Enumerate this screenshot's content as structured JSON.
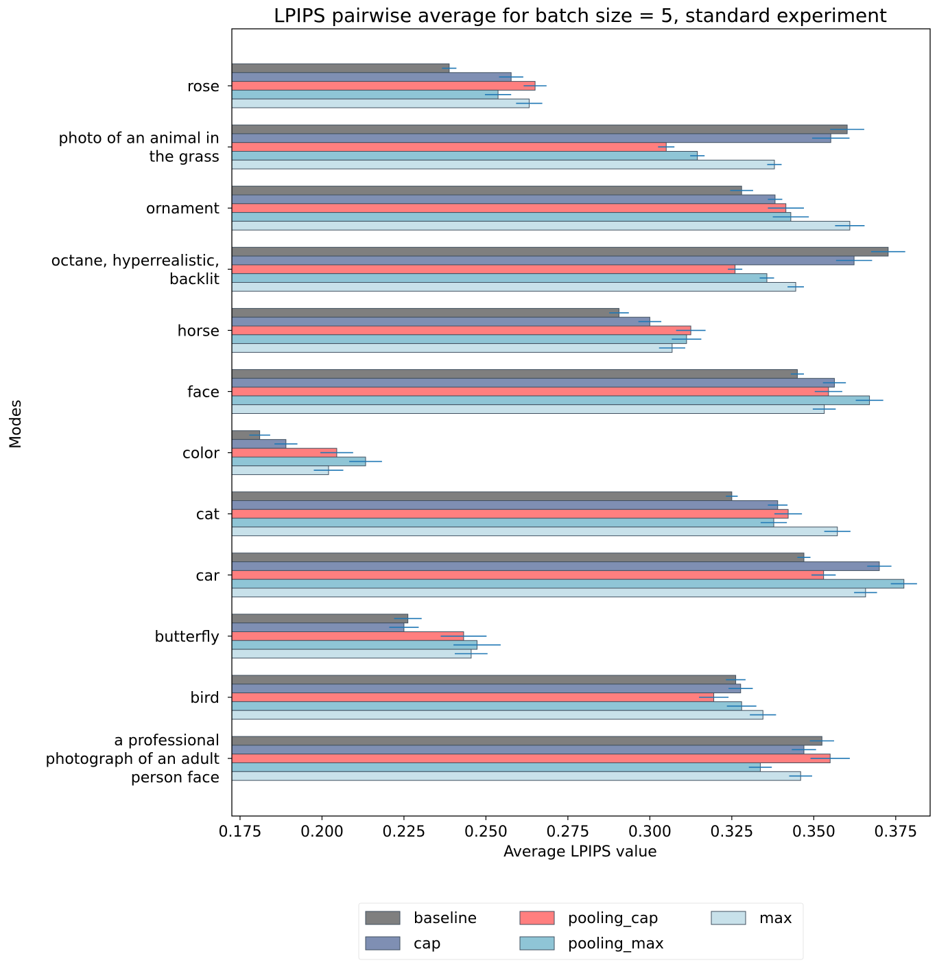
{
  "chart_data": {
    "type": "bar",
    "orientation": "horizontal",
    "title": "LPIPS pairwise average for batch size = 5, standard experiment",
    "xlabel": "Average LPIPS value",
    "ylabel": "Modes",
    "xlim": [
      0.1725,
      0.3855
    ],
    "xticks": [
      "0.175",
      "0.200",
      "0.225",
      "0.250",
      "0.275",
      "0.300",
      "0.325",
      "0.350",
      "0.375"
    ],
    "categories": [
      "rose",
      "photo of an animal in\nthe grass",
      "ornament",
      "octane, hyperrealistic,\nbacklit",
      "horse",
      "face",
      "color",
      "cat",
      "car",
      "butterfly",
      "bird",
      "a professional\nphotograph of an adult\nperson face"
    ],
    "series": [
      {
        "name": "baseline",
        "color": "#7f7f7f",
        "values": [
          0.2388,
          0.3602,
          0.328,
          0.3727,
          0.2906,
          0.345,
          0.181,
          0.325,
          0.347,
          0.2262,
          0.3262,
          0.3525
        ],
        "errors": [
          0.0022,
          0.0052,
          0.0035,
          0.0052,
          0.003,
          0.002,
          0.0032,
          0.0018,
          0.002,
          0.0042,
          0.003,
          0.0037
        ]
      },
      {
        "name": "cap",
        "color": "#7f8fb3",
        "values": [
          0.2577,
          0.3552,
          0.3382,
          0.3623,
          0.3,
          0.3563,
          0.189,
          0.339,
          0.37,
          0.225,
          0.3277,
          0.347
        ],
        "errors": [
          0.0037,
          0.0057,
          0.0022,
          0.0055,
          0.0035,
          0.0035,
          0.0035,
          0.003,
          0.0037,
          0.0045,
          0.0037,
          0.0037
        ]
      },
      {
        "name": "pooling_cap",
        "color": "#ff7f7f",
        "values": [
          0.265,
          0.305,
          0.3415,
          0.326,
          0.3125,
          0.3545,
          0.2045,
          0.3422,
          0.353,
          0.2432,
          0.3195,
          0.355
        ],
        "errors": [
          0.0035,
          0.0025,
          0.0055,
          0.0022,
          0.0045,
          0.0042,
          0.005,
          0.0042,
          0.0037,
          0.007,
          0.0045,
          0.006
        ]
      },
      {
        "name": "pooling_max",
        "color": "#8fc5d6",
        "values": [
          0.2537,
          0.3145,
          0.343,
          0.3357,
          0.3112,
          0.367,
          0.2133,
          0.3378,
          0.3775,
          0.2473,
          0.328,
          0.3337
        ],
        "errors": [
          0.004,
          0.0022,
          0.0055,
          0.0022,
          0.0045,
          0.0042,
          0.005,
          0.004,
          0.004,
          0.0072,
          0.0045,
          0.0035
        ]
      },
      {
        "name": "max",
        "color": "#c8e1ea",
        "values": [
          0.2632,
          0.338,
          0.361,
          0.3445,
          0.3068,
          0.3532,
          0.202,
          0.3572,
          0.3658,
          0.2455,
          0.3345,
          0.346
        ],
        "errors": [
          0.004,
          0.0022,
          0.0045,
          0.0025,
          0.004,
          0.0035,
          0.0045,
          0.004,
          0.0035,
          0.005,
          0.004,
          0.0035
        ]
      }
    ],
    "error_bar_color": "#1f77b4",
    "bar_edge_color": "#3f4f5f",
    "legend": {
      "placement": "bottom-center",
      "columns": 3
    }
  }
}
